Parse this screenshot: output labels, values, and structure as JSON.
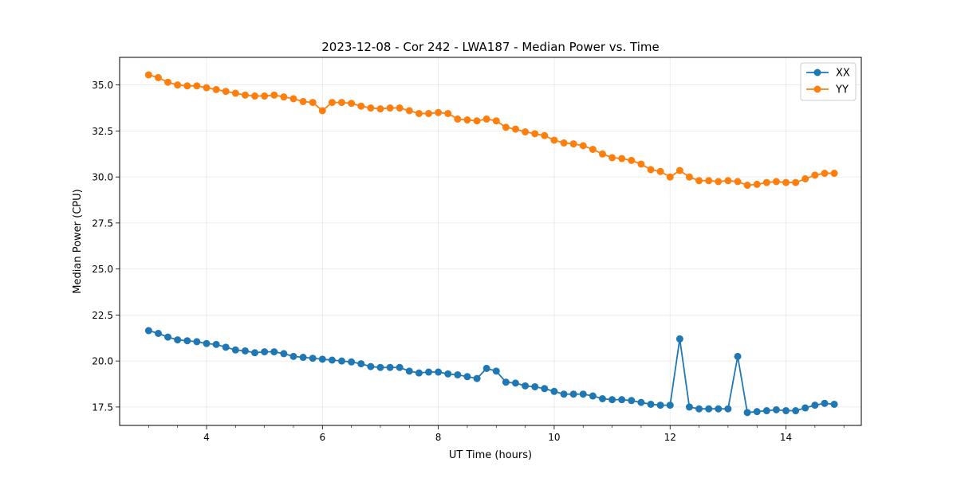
{
  "chart_data": {
    "type": "line",
    "title": "2023-12-08 - Cor 242 - LWA187 - Median Power vs. Time",
    "xlabel": "UT Time (hours)",
    "ylabel": "Median Power (CPU)",
    "xlim": [
      2.5,
      15.3
    ],
    "ylim": [
      16.5,
      36.5
    ],
    "xticks": [
      4,
      6,
      8,
      10,
      12,
      14
    ],
    "xtick_labels": [
      "4",
      "6",
      "8",
      "10",
      "12",
      "14"
    ],
    "yticks": [
      17.5,
      20.0,
      22.5,
      25.0,
      27.5,
      30.0,
      32.5,
      35.0
    ],
    "ytick_labels": [
      "17.5",
      "20.0",
      "22.5",
      "25.0",
      "27.5",
      "30.0",
      "32.5",
      "35.0"
    ],
    "grid": true,
    "legend_position": "top-right",
    "x": [
      3.0,
      3.167,
      3.333,
      3.5,
      3.667,
      3.833,
      4.0,
      4.167,
      4.333,
      4.5,
      4.667,
      4.833,
      5.0,
      5.167,
      5.333,
      5.5,
      5.667,
      5.833,
      6.0,
      6.167,
      6.333,
      6.5,
      6.667,
      6.833,
      7.0,
      7.167,
      7.333,
      7.5,
      7.667,
      7.833,
      8.0,
      8.167,
      8.333,
      8.5,
      8.667,
      8.833,
      9.0,
      9.167,
      9.333,
      9.5,
      9.667,
      9.833,
      10.0,
      10.167,
      10.333,
      10.5,
      10.667,
      10.833,
      11.0,
      11.167,
      11.333,
      11.5,
      11.667,
      11.833,
      12.0,
      12.167,
      12.333,
      12.5,
      12.667,
      12.833,
      13.0,
      13.167,
      13.333,
      13.5,
      13.667,
      13.833,
      14.0,
      14.167,
      14.333,
      14.5,
      14.667,
      14.833
    ],
    "series": [
      {
        "name": "XX",
        "color": "#1f77b4",
        "values": [
          21.65,
          21.5,
          21.3,
          21.15,
          21.1,
          21.05,
          20.95,
          20.9,
          20.75,
          20.6,
          20.55,
          20.45,
          20.5,
          20.5,
          20.4,
          20.25,
          20.2,
          20.15,
          20.1,
          20.05,
          20.0,
          19.95,
          19.85,
          19.7,
          19.65,
          19.65,
          19.65,
          19.45,
          19.35,
          19.4,
          19.4,
          19.3,
          19.25,
          19.15,
          19.05,
          19.6,
          19.45,
          18.85,
          18.8,
          18.65,
          18.6,
          18.5,
          18.35,
          18.2,
          18.2,
          18.2,
          18.1,
          17.95,
          17.9,
          17.9,
          17.85,
          17.75,
          17.65,
          17.6,
          17.6,
          21.2,
          17.5,
          17.4,
          17.4,
          17.4,
          17.4,
          20.25,
          17.2,
          17.25,
          17.3,
          17.35,
          17.3,
          17.3,
          17.45,
          17.6,
          17.7,
          17.65
        ]
      },
      {
        "name": "YY",
        "color": "#ff7f0e",
        "values": [
          35.55,
          35.4,
          35.15,
          35.0,
          34.95,
          34.95,
          34.85,
          34.75,
          34.65,
          34.55,
          34.45,
          34.4,
          34.4,
          34.45,
          34.35,
          34.25,
          34.1,
          34.05,
          33.6,
          34.05,
          34.05,
          34.0,
          33.85,
          33.75,
          33.7,
          33.75,
          33.75,
          33.6,
          33.45,
          33.45,
          33.5,
          33.45,
          33.15,
          33.1,
          33.05,
          33.15,
          33.05,
          32.7,
          32.6,
          32.45,
          32.35,
          32.25,
          32.0,
          31.85,
          31.8,
          31.7,
          31.5,
          31.25,
          31.05,
          31.0,
          30.9,
          30.7,
          30.4,
          30.3,
          30.0,
          30.35,
          30.0,
          29.8,
          29.8,
          29.75,
          29.8,
          29.75,
          29.55,
          29.6,
          29.7,
          29.75,
          29.7,
          29.7,
          29.9,
          30.1,
          30.2,
          30.2
        ]
      }
    ]
  }
}
